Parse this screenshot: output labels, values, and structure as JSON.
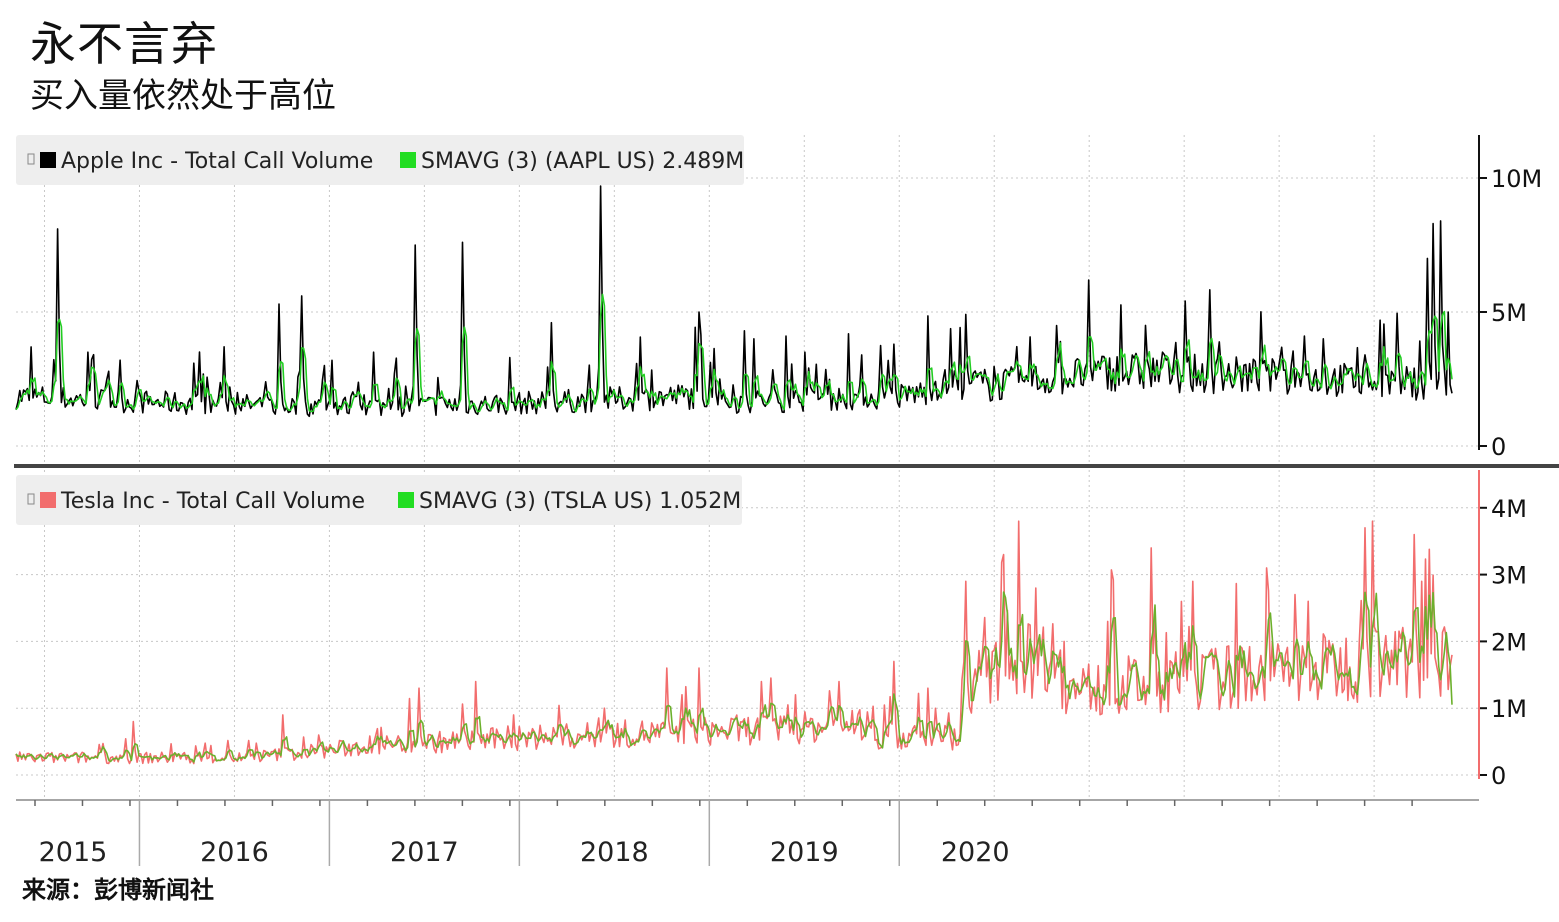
{
  "title": "永不言弃",
  "subtitle": "买入量依然处于高位",
  "source": "来源：彭博新闻社",
  "colors": {
    "aapl_volume": "#000000",
    "aapl_smavg": "#22cc22",
    "tsla_volume": "#f26d6d",
    "tsla_smavg": "#6cb02c",
    "grid": "#c8c8c8",
    "legend_bg": "#eeeeee",
    "tsla_axis": "#f26d6d",
    "separator": "#444444"
  },
  "chart_data": [
    {
      "type": "line",
      "panel": "top",
      "legend": [
        "Apple Inc - Total Call Volume",
        "SMAVG (3) (AAPL US) 2.489M"
      ],
      "series": [
        {
          "name": "Apple Inc - Total Call Volume",
          "role": "volume"
        },
        {
          "name": "SMAVG (3) (AAPL US) 2.489M",
          "role": "smavg"
        }
      ],
      "ylim": [
        0,
        10
      ],
      "ytick_labels": [
        "0",
        "5M",
        "10M"
      ],
      "ytick_values": [
        0,
        5,
        10
      ],
      "unit": "M",
      "last_smavg": 2.489,
      "spikes": [
        [
          2015.22,
          8.1
        ],
        [
          2015.38,
          3.5
        ],
        [
          2015.55,
          3.2
        ],
        [
          2016.1,
          3.7
        ],
        [
          2016.38,
          5.3
        ],
        [
          2016.5,
          5.6
        ],
        [
          2016.62,
          3.0
        ],
        [
          2016.88,
          3.5
        ],
        [
          2017.1,
          7.5
        ],
        [
          2017.35,
          7.6
        ],
        [
          2017.6,
          3.3
        ],
        [
          2017.82,
          4.6
        ],
        [
          2018.08,
          9.7
        ],
        [
          2018.6,
          5.0
        ],
        [
          2018.83,
          4.3
        ],
        [
          2018.88,
          4.0
        ],
        [
          2019.05,
          4.1
        ],
        [
          2019.15,
          3.5
        ],
        [
          2019.45,
          3.4
        ],
        [
          2019.62,
          3.8
        ],
        [
          2020.05,
          2.8
        ],
        [
          2020.5,
          3.9
        ],
        [
          2020.95,
          4.5
        ],
        [
          2021.04,
          3.5
        ],
        [
          2021.1,
          3.2
        ],
        [
          2021.62,
          3.1
        ],
        [
          2021.88,
          4.0
        ],
        [
          2022.1,
          3.4
        ],
        [
          2022.43,
          7.0
        ],
        [
          2022.46,
          8.3
        ],
        [
          2022.5,
          8.4
        ],
        [
          2022.54,
          5.0
        ]
      ]
    },
    {
      "type": "line",
      "panel": "bottom",
      "legend": [
        "Tesla Inc - Total Call Volume",
        "SMAVG (3) (TSLA US) 1.052M"
      ],
      "series": [
        {
          "name": "Tesla Inc - Total Call Volume",
          "role": "volume"
        },
        {
          "name": "SMAVG (3) (TSLA US) 1.052M",
          "role": "smavg"
        }
      ],
      "ylim": [
        0,
        4
      ],
      "ytick_labels": [
        "0",
        "1M",
        "2M",
        "3M",
        "4M"
      ],
      "ytick_values": [
        0,
        1,
        2,
        3,
        4
      ],
      "unit": "M",
      "last_smavg": 1.052,
      "spikes": [
        [
          2015.62,
          0.8
        ],
        [
          2016.4,
          0.9
        ],
        [
          2017.12,
          1.3
        ],
        [
          2017.42,
          1.4
        ],
        [
          2017.62,
          0.9
        ],
        [
          2018.1,
          1.0
        ],
        [
          2018.43,
          1.6
        ],
        [
          2018.6,
          1.6
        ],
        [
          2018.92,
          1.4
        ],
        [
          2019.1,
          1.2
        ],
        [
          2019.33,
          1.4
        ],
        [
          2019.62,
          1.7
        ],
        [
          2019.8,
          1.3
        ],
        [
          2020.0,
          2.9
        ],
        [
          2020.2,
          3.3
        ],
        [
          2020.28,
          3.8
        ],
        [
          2020.37,
          2.8
        ],
        [
          2020.52,
          2.0
        ],
        [
          2020.75,
          2.3
        ],
        [
          2020.98,
          3.4
        ],
        [
          2021.2,
          2.9
        ],
        [
          2021.45,
          1.9
        ],
        [
          2021.58,
          3.1
        ],
        [
          2021.68,
          1.8
        ],
        [
          2021.73,
          2.7
        ],
        [
          2021.8,
          2.6
        ],
        [
          2022.1,
          3.7
        ],
        [
          2022.14,
          3.8
        ],
        [
          2022.36,
          3.6
        ],
        [
          2022.4,
          2.9
        ]
      ]
    }
  ],
  "x_axis": {
    "range": [
      2015.0,
      2022.56
    ],
    "year_labels": [
      {
        "label": "2015",
        "x": 2015.3
      },
      {
        "label": "2016",
        "x": 2016.15
      },
      {
        "label": "2017",
        "x": 2017.15
      },
      {
        "label": "2018",
        "x": 2018.15
      },
      {
        "label": "2019",
        "x": 2019.15
      },
      {
        "label": "2020",
        "x": 2020.05
      }
    ],
    "year_boundaries": [
      2015.65,
      2016.65,
      2017.65,
      2018.65,
      2019.65
    ]
  }
}
